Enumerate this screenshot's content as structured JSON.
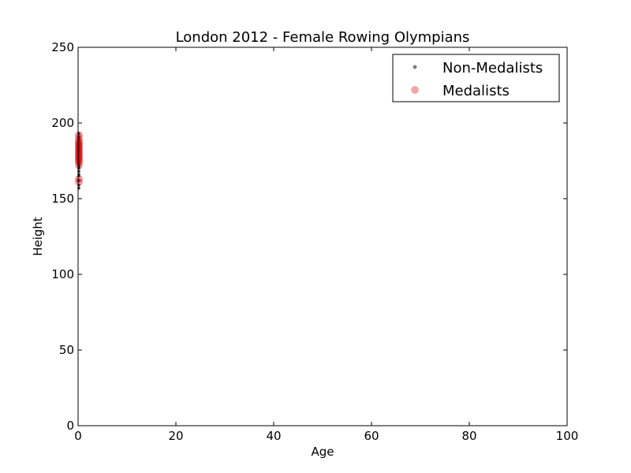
{
  "chart_data": {
    "type": "scatter",
    "title": "London 2012 - Female Rowing Olympians",
    "xlabel": "Age",
    "ylabel": "Height",
    "xlim": [
      0,
      100
    ],
    "ylim": [
      0,
      250
    ],
    "xticks": [
      0,
      20,
      40,
      60,
      80,
      100
    ],
    "yticks": [
      0,
      50,
      100,
      150,
      200,
      250
    ],
    "grid": false,
    "legend_position": "top-right",
    "series": [
      {
        "name": "Non-Medalists",
        "color": "#808080",
        "marker": "small-dot",
        "points": [
          [
            0,
            157
          ],
          [
            0,
            159
          ],
          [
            0,
            162
          ],
          [
            0,
            165
          ],
          [
            0,
            166
          ],
          [
            0,
            168
          ],
          [
            0,
            170
          ],
          [
            0,
            171
          ],
          [
            0,
            172
          ],
          [
            0,
            173
          ],
          [
            0,
            174
          ],
          [
            0,
            175
          ],
          [
            0,
            176
          ],
          [
            0,
            177
          ],
          [
            0,
            178
          ],
          [
            0,
            179
          ],
          [
            0,
            180
          ],
          [
            0,
            181
          ],
          [
            0,
            182
          ],
          [
            0,
            183
          ],
          [
            0,
            184
          ],
          [
            0,
            185
          ],
          [
            0,
            186
          ],
          [
            0,
            187
          ],
          [
            0,
            188
          ],
          [
            0,
            189
          ],
          [
            0,
            190
          ],
          [
            0,
            191
          ],
          [
            0,
            193
          ]
        ]
      },
      {
        "name": "Medalists",
        "color": "#f08080",
        "marker": "circle",
        "points": [
          [
            0,
            161
          ],
          [
            0,
            163
          ],
          [
            0,
            172
          ],
          [
            0,
            174
          ],
          [
            0,
            175
          ],
          [
            0,
            176
          ],
          [
            0,
            177
          ],
          [
            0,
            178
          ],
          [
            0,
            179
          ],
          [
            0,
            180
          ],
          [
            0,
            181
          ],
          [
            0,
            182
          ],
          [
            0,
            183
          ],
          [
            0,
            184
          ],
          [
            0,
            185
          ],
          [
            0,
            186
          ],
          [
            0,
            187
          ],
          [
            0,
            188
          ],
          [
            0,
            190
          ],
          [
            0,
            192
          ]
        ]
      }
    ]
  }
}
